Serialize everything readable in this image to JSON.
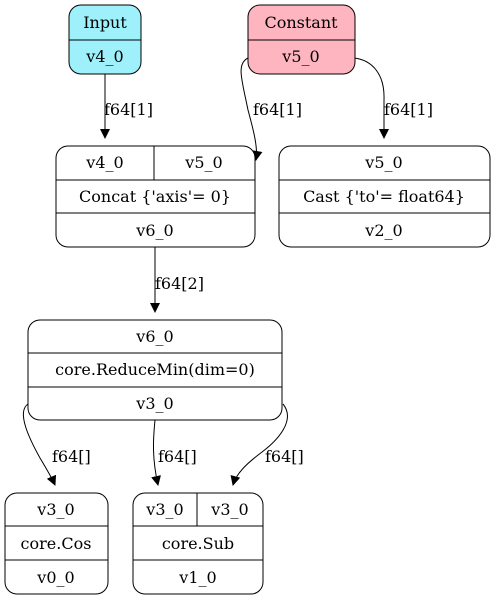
{
  "colors": {
    "input_fill": "#9ef0fb",
    "constant_fill": "#feb5c0"
  },
  "nodes": {
    "input": {
      "title": "Input",
      "out": "v4_0"
    },
    "constant": {
      "title": "Constant",
      "out": "v5_0"
    },
    "concat": {
      "in1": "v4_0",
      "in2": "v5_0",
      "op": "Concat {'axis'= 0}",
      "out": "v6_0"
    },
    "cast": {
      "in1": "v5_0",
      "op": "Cast {'to'= float64}",
      "out": "v2_0"
    },
    "reducemin": {
      "in1": "v6_0",
      "op": "core.ReduceMin(dim=0)",
      "out": "v3_0"
    },
    "cos": {
      "in1": "v3_0",
      "op": "core.Cos",
      "out": "v0_0"
    },
    "sub": {
      "in1": "v3_0",
      "in2": "v3_0",
      "op": "core.Sub",
      "out": "v1_0"
    }
  },
  "edges": {
    "input_concat": "f64[1]",
    "constant_concat": "f64[1]",
    "constant_cast": "f64[1]",
    "concat_reducemin": "f64[2]",
    "reducemin_cos": "f64[]",
    "reducemin_sub1": "f64[]",
    "reducemin_sub2": "f64[]"
  }
}
